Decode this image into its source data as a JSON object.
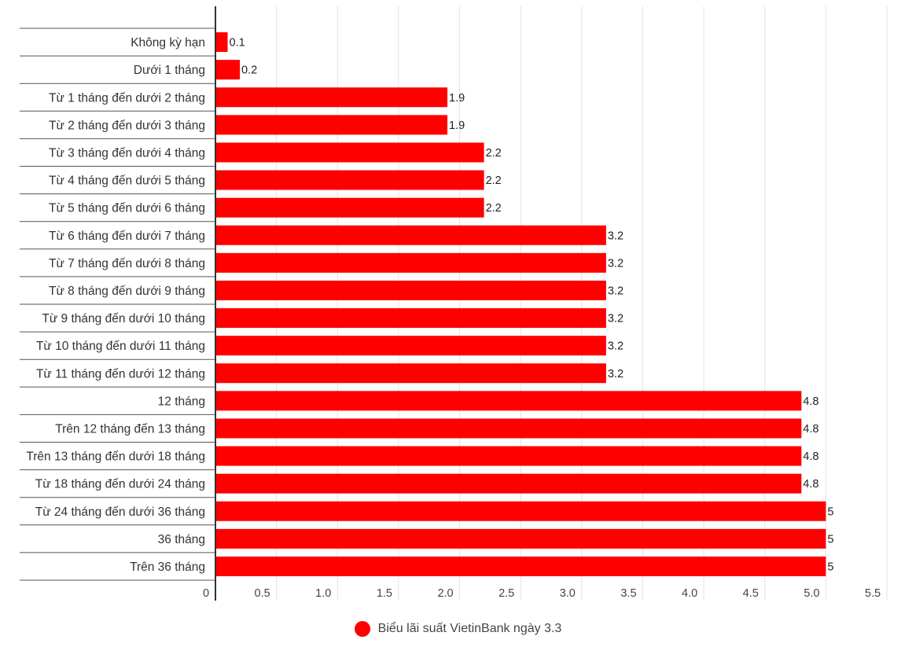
{
  "chart_data": {
    "type": "bar",
    "orientation": "horizontal",
    "categories": [
      "Không kỳ hạn",
      "Dưới 1 tháng",
      "Từ 1 tháng đến dưới 2 tháng",
      "Từ 2 tháng đến dưới 3 tháng",
      "Từ 3 tháng đến dưới 4 tháng",
      "Từ 4 tháng đến dưới 5 tháng",
      "Từ 5 tháng đến dưới 6 tháng",
      "Từ 6 tháng đến dưới 7 tháng",
      "Từ 7 tháng đến dưới 8 tháng",
      "Từ 8 tháng đến dưới 9 tháng",
      "Từ 9 tháng đến dưới 10 tháng",
      "Từ 10 tháng đến dưới 11 tháng",
      "Từ 11 tháng đến dưới 12 tháng",
      "12 tháng",
      "Trên 12 tháng đến 13 tháng",
      "Trên 13 tháng đến dưới 18 tháng",
      "Từ 18 tháng đến dưới 24 tháng",
      "Từ 24 tháng đến dưới 36 tháng",
      "36 tháng",
      "Trên 36 tháng"
    ],
    "series": [
      {
        "name": "Biểu lãi suất VietinBank ngày 3.3",
        "color": "#ff0000",
        "values": [
          0.1,
          0.2,
          1.9,
          1.9,
          2.2,
          2.2,
          2.2,
          3.2,
          3.2,
          3.2,
          3.2,
          3.2,
          3.2,
          4.8,
          4.8,
          4.8,
          4.8,
          5,
          5,
          5
        ],
        "value_labels": [
          "0.1",
          "0.2",
          "1.9",
          "1.9",
          "2.2",
          "2.2",
          "2.2",
          "3.2",
          "3.2",
          "3.2",
          "3.2",
          "3.2",
          "3.2",
          "4.8",
          "4.8",
          "4.8",
          "4.8",
          "5",
          "5",
          "5"
        ]
      }
    ],
    "xlim": [
      0,
      5.5
    ],
    "x_ticks": [
      0,
      0.5,
      1.0,
      1.5,
      2.0,
      2.5,
      3.0,
      3.5,
      4.0,
      4.5,
      5.0,
      5.5
    ],
    "x_tick_labels": [
      "0",
      "0.5",
      "1.0",
      "1.5",
      "2.0",
      "2.5",
      "3.0",
      "3.5",
      "4.0",
      "4.5",
      "5.0",
      "5.5"
    ],
    "title": "",
    "xlabel": "",
    "ylabel": "",
    "grid": "vertical",
    "legend_position": "bottom-center"
  },
  "legend": {
    "label": "Biểu lãi suất VietinBank ngày 3.3",
    "color": "#ff0000"
  }
}
